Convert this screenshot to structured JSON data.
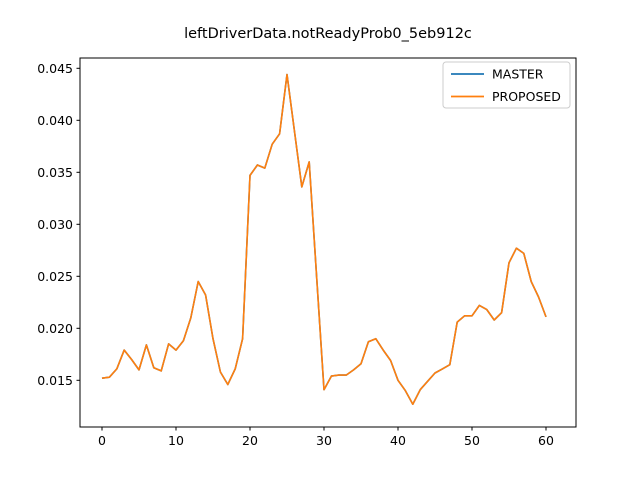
{
  "title": "leftDriverData.notReadyProb0_5eb912c",
  "legend": {
    "entries": [
      {
        "label": "MASTER",
        "color": "#1f77b4"
      },
      {
        "label": "PROPOSED",
        "color": "#ff7f0e"
      }
    ]
  },
  "chart_data": {
    "type": "line",
    "title": "leftDriverData.notReadyProb0_5eb912c",
    "xlabel": "",
    "ylabel": "",
    "grid": false,
    "legend_position": "upper right",
    "xlim": [
      -3,
      64
    ],
    "ylim": [
      0.0108,
      0.046
    ],
    "xticks": [
      0,
      10,
      20,
      30,
      40,
      50,
      60
    ],
    "yticks": [
      0.015,
      0.02,
      0.025,
      0.03,
      0.035,
      0.04,
      0.045
    ],
    "ytick_labels": [
      "0.015",
      "0.020",
      "0.025",
      "0.030",
      "0.035",
      "0.040",
      "0.045"
    ],
    "x": [
      0,
      1,
      2,
      3,
      4,
      5,
      6,
      7,
      8,
      9,
      10,
      11,
      12,
      13,
      14,
      15,
      16,
      17,
      18,
      19,
      20,
      21,
      22,
      23,
      24,
      25,
      26,
      27,
      28,
      29,
      30,
      31,
      32,
      33,
      34,
      35,
      36,
      37,
      38,
      39,
      40,
      41,
      42,
      43,
      44,
      45,
      46,
      47,
      48,
      49,
      50,
      51,
      52,
      53,
      54,
      55,
      56,
      57,
      58,
      59,
      60
    ],
    "series": [
      {
        "name": "MASTER",
        "color": "#1f77b4",
        "values": [
          0.0152,
          0.0153,
          0.0161,
          0.0179,
          0.017,
          0.016,
          0.0184,
          0.0162,
          0.0159,
          0.0185,
          0.0179,
          0.0188,
          0.021,
          0.0245,
          0.0232,
          0.019,
          0.0158,
          0.0146,
          0.0161,
          0.019,
          0.0347,
          0.0357,
          0.0354,
          0.0377,
          0.0387,
          0.0444,
          0.039,
          0.0336,
          0.036,
          0.025,
          0.0141,
          0.0154,
          0.0155,
          0.0155,
          0.016,
          0.0166,
          0.0187,
          0.019,
          0.0179,
          0.0169,
          0.015,
          0.014,
          0.0127,
          0.0141,
          0.0149,
          0.0157,
          0.0161,
          0.0165,
          0.0206,
          0.0212,
          0.0212,
          0.0222,
          0.0218,
          0.0208,
          0.0215,
          0.0263,
          0.0277,
          0.0272,
          0.0245,
          0.023,
          0.0211
        ]
      },
      {
        "name": "PROPOSED",
        "color": "#ff7f0e",
        "values": [
          0.0152,
          0.0153,
          0.0161,
          0.0179,
          0.017,
          0.016,
          0.0184,
          0.0162,
          0.0159,
          0.0185,
          0.0179,
          0.0188,
          0.021,
          0.0245,
          0.0232,
          0.019,
          0.0158,
          0.0146,
          0.0161,
          0.019,
          0.0347,
          0.0357,
          0.0354,
          0.0377,
          0.0387,
          0.0444,
          0.039,
          0.0336,
          0.036,
          0.025,
          0.0141,
          0.0154,
          0.0155,
          0.0155,
          0.016,
          0.0166,
          0.0187,
          0.019,
          0.0179,
          0.0169,
          0.015,
          0.014,
          0.0127,
          0.0141,
          0.0149,
          0.0157,
          0.0161,
          0.0165,
          0.0206,
          0.0212,
          0.0212,
          0.0222,
          0.0218,
          0.0208,
          0.0215,
          0.0263,
          0.0277,
          0.0272,
          0.0245,
          0.023,
          0.0211
        ]
      }
    ]
  }
}
